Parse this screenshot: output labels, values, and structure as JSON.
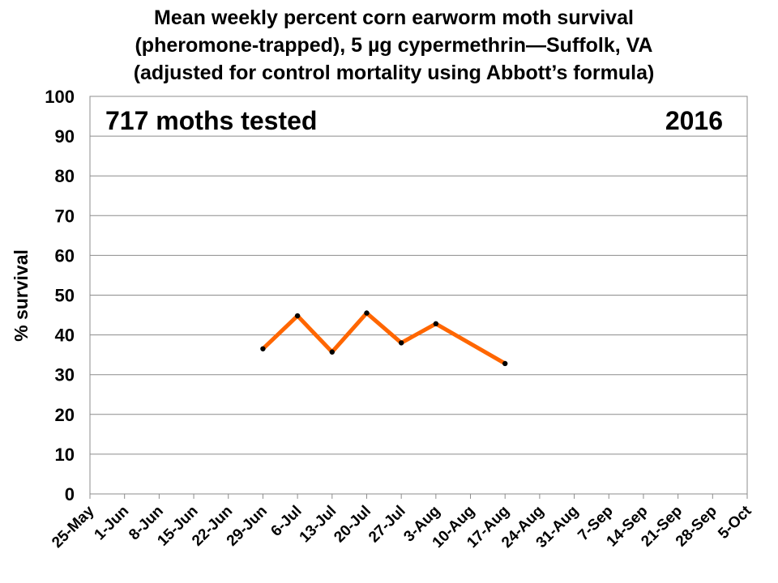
{
  "chart_data": {
    "type": "line",
    "title_lines": [
      "Mean weekly percent corn earworm moth survival",
      "(pheromone-trapped), 5 µg cypermethrin—Suffolk, VA",
      "(adjusted for control mortality using Abbott’s formula)"
    ],
    "ylabel": "% survival",
    "xlabel": "",
    "ylim": [
      0,
      100
    ],
    "yticks": [
      0,
      10,
      20,
      30,
      40,
      50,
      60,
      70,
      80,
      90,
      100
    ],
    "categories": [
      "25-May",
      "1-Jun",
      "8-Jun",
      "15-Jun",
      "22-Jun",
      "29-Jun",
      "6-Jul",
      "13-Jul",
      "20-Jul",
      "27-Jul",
      "3-Aug",
      "10-Aug",
      "17-Aug",
      "24-Aug",
      "31-Aug",
      "7-Sep",
      "14-Sep",
      "21-Sep",
      "28-Sep",
      "5-Oct"
    ],
    "series": [
      {
        "color": "#ff6600",
        "points": [
          {
            "x": "29-Jun",
            "y": 36.5
          },
          {
            "x": "6-Jul",
            "y": 44.8
          },
          {
            "x": "13-Jul",
            "y": 35.7
          },
          {
            "x": "20-Jul",
            "y": 45.5
          },
          {
            "x": "27-Jul",
            "y": 38.0
          },
          {
            "x": "3-Aug",
            "y": 42.8
          },
          {
            "x": "17-Aug",
            "y": 32.8
          }
        ]
      }
    ],
    "annotations": {
      "left": "717 moths tested",
      "right": "2016"
    },
    "grid": true,
    "legend": "none"
  }
}
